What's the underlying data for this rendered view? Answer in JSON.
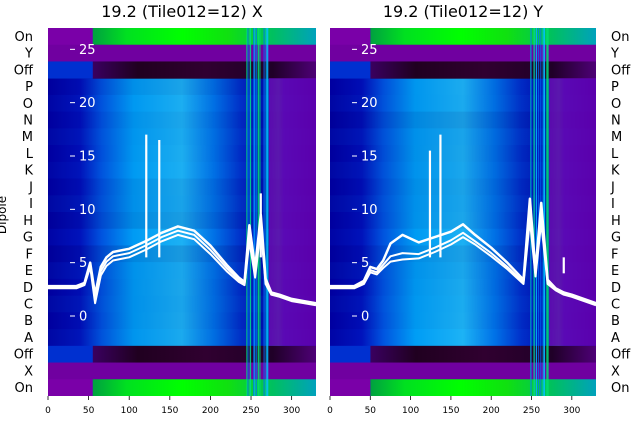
{
  "chart_data": {
    "type": "heatmap",
    "ylabel": "Dipole",
    "row_labels_top_to_bottom": [
      "On",
      "Y",
      "Off",
      "P",
      "O",
      "N",
      "M",
      "L",
      "K",
      "J",
      "I",
      "H",
      "G",
      "F",
      "E",
      "D",
      "C",
      "B",
      "A",
      "Off",
      "X",
      "On"
    ],
    "x_ticks": [
      0,
      50,
      100,
      150,
      200,
      250,
      300
    ],
    "xlim": [
      0,
      330
    ],
    "overlay_y_ticks": [
      0,
      5,
      10,
      15,
      20,
      25
    ],
    "overlay_ylim": [
      -7.5,
      27
    ],
    "colormap": [
      "#7a00a0",
      "#2a0030",
      "#0000c8",
      "#0050ff",
      "#00a8ff",
      "#00ff20"
    ],
    "panels": [
      {
        "title": "19.2 (Tile012=12) X",
        "overlay_lines": [
          {
            "x": [
              0,
              35,
              45,
              52,
              58,
              65,
              72,
              80,
              100,
              120,
              140,
              160,
              180,
              200,
              220,
              235,
              242,
              248,
              255,
              262,
              268,
              275,
              285,
              300,
              315,
              330
            ],
            "y": [
              2.8,
              2.8,
              3.1,
              5.0,
              2.0,
              4.6,
              5.5,
              6.0,
              6.3,
              7.0,
              7.8,
              8.4,
              8.0,
              6.6,
              4.8,
              3.6,
              3.2,
              8.5,
              4.5,
              9.5,
              3.5,
              2.2,
              2.0,
              1.6,
              1.4,
              1.2
            ]
          },
          {
            "x": [
              0,
              35,
              45,
              52,
              58,
              65,
              72,
              80,
              100,
              120,
              140,
              160,
              180,
              200,
              220,
              235,
              242,
              248,
              255,
              262,
              268,
              275,
              285,
              300,
              315,
              330
            ],
            "y": [
              2.7,
              2.7,
              3.0,
              4.8,
              1.5,
              4.2,
              5.1,
              5.6,
              5.9,
              6.6,
              7.4,
              8.0,
              7.6,
              6.2,
              4.5,
              3.4,
              3.0,
              7.5,
              4.0,
              8.8,
              3.2,
              2.1,
              1.9,
              1.5,
              1.3,
              1.1
            ]
          },
          {
            "x": [
              0,
              35,
              45,
              52,
              58,
              65,
              72,
              80,
              100,
              120,
              140,
              160,
              180,
              200,
              220,
              235,
              242,
              248,
              255,
              262,
              268,
              275,
              285,
              300,
              315,
              330
            ],
            "y": [
              2.6,
              2.6,
              2.9,
              4.6,
              1.2,
              3.8,
              4.7,
              5.2,
              5.5,
              6.2,
              7.0,
              7.6,
              7.2,
              5.8,
              4.2,
              3.2,
              2.9,
              7.0,
              3.6,
              8.2,
              3.0,
              2.0,
              1.8,
              1.4,
              1.2,
              1.0
            ]
          }
        ],
        "spikes": [
          {
            "x": 121,
            "y": 17.0
          },
          {
            "x": 137,
            "y": 16.5
          },
          {
            "x": 262,
            "y": 11.5
          }
        ]
      },
      {
        "title": "19.2 (Tile012=12) Y",
        "overlay_lines": [
          {
            "x": [
              0,
              30,
              42,
              50,
              58,
              66,
              75,
              90,
              110,
              130,
              150,
              165,
              180,
              200,
              220,
              240,
              248,
              255,
              262,
              270,
              280,
              290,
              300,
              315,
              330
            ],
            "y": [
              2.8,
              2.8,
              3.3,
              4.6,
              4.4,
              5.2,
              6.8,
              7.6,
              6.9,
              7.4,
              7.9,
              8.6,
              7.6,
              6.4,
              5.0,
              3.4,
              11.0,
              4.2,
              10.6,
              3.4,
              2.6,
              2.2,
              2.0,
              1.6,
              1.2
            ]
          },
          {
            "x": [
              0,
              30,
              42,
              50,
              58,
              66,
              75,
              90,
              110,
              130,
              150,
              165,
              180,
              200,
              220,
              240,
              248,
              255,
              262,
              270,
              280,
              290,
              300,
              315,
              330
            ],
            "y": [
              2.7,
              2.7,
              3.1,
              4.3,
              4.1,
              4.8,
              5.6,
              5.9,
              5.8,
              6.4,
              7.1,
              7.8,
              7.0,
              5.9,
              4.6,
              3.2,
              9.6,
              3.9,
              9.4,
              3.2,
              2.5,
              2.1,
              1.9,
              1.5,
              1.1
            ]
          },
          {
            "x": [
              0,
              30,
              42,
              50,
              58,
              66,
              75,
              90,
              110,
              130,
              150,
              165,
              180,
              200,
              220,
              240,
              248,
              255,
              262,
              270,
              280,
              290,
              300,
              315,
              330
            ],
            "y": [
              2.6,
              2.6,
              3.0,
              4.1,
              3.9,
              4.5,
              5.1,
              5.3,
              5.4,
              6.0,
              6.7,
              7.4,
              6.7,
              5.6,
              4.4,
              3.0,
              9.0,
              3.7,
              8.8,
              3.0,
              2.4,
              2.0,
              1.8,
              1.4,
              1.0
            ]
          }
        ],
        "spikes": [
          {
            "x": 124,
            "y": 15.5
          },
          {
            "x": 137,
            "y": 17.0
          },
          {
            "x": 290,
            "y": 4.0
          }
        ]
      }
    ]
  }
}
